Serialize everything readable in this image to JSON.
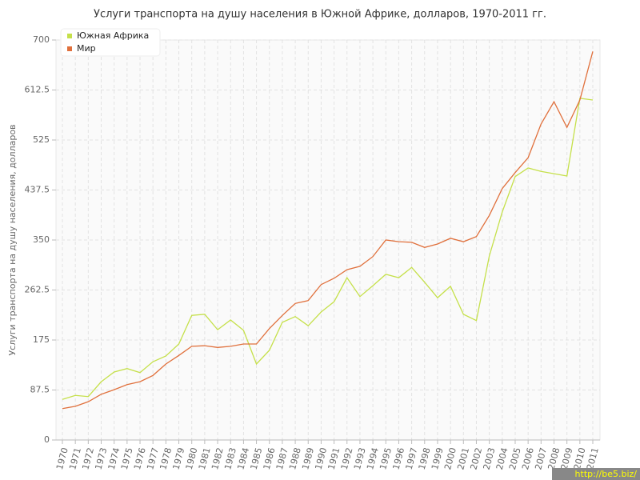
{
  "chart_data": {
    "type": "line",
    "title": "Услуги транспорта на душу населения в Южной Африке, долларов, 1970-2011 гг.",
    "y_label": "Услуги транспорта на душу населения, долларов",
    "watermark": "http://be5.biz/",
    "categories": [
      "1970",
      "1971",
      "1972",
      "1973",
      "1974",
      "1975",
      "1976",
      "1977",
      "1978",
      "1979",
      "1980",
      "1981",
      "1982",
      "1983",
      "1984",
      "1985",
      "1986",
      "1987",
      "1988",
      "1989",
      "1990",
      "1991",
      "1992",
      "1993",
      "1994",
      "1995",
      "1996",
      "1997",
      "1998",
      "1999",
      "2000",
      "2001",
      "2002",
      "2003",
      "2004",
      "2005",
      "2006",
      "2007",
      "2008",
      "2009",
      "2010",
      "2011"
    ],
    "series": [
      {
        "name": "Южная Африка",
        "color": "#c5e04a",
        "values": [
          71,
          78,
          76,
          102,
          119,
          125,
          118,
          137,
          147,
          168,
          218,
          220,
          193,
          210,
          192,
          133,
          157,
          206,
          216,
          200,
          224,
          242,
          284,
          251,
          270,
          290,
          284,
          302,
          276,
          249,
          269,
          220,
          209,
          322,
          399,
          461,
          476,
          470,
          466,
          462,
          598,
          595
        ]
      },
      {
        "name": "Мир",
        "color": "#e0703c",
        "values": [
          55,
          59,
          67,
          80,
          88,
          97,
          102,
          113,
          133,
          148,
          164,
          165,
          162,
          164,
          168,
          168,
          195,
          218,
          239,
          244,
          272,
          283,
          298,
          304,
          321,
          350,
          347,
          346,
          337,
          343,
          353,
          347,
          356,
          393,
          440,
          468,
          494,
          553,
          592,
          547,
          595,
          680
        ]
      }
    ],
    "ylim": [
      0,
      700
    ],
    "yticks": [
      0,
      87.5,
      175,
      262.5,
      350,
      437.5,
      525,
      612.5,
      700
    ],
    "grid": true,
    "legend": "top-left"
  }
}
